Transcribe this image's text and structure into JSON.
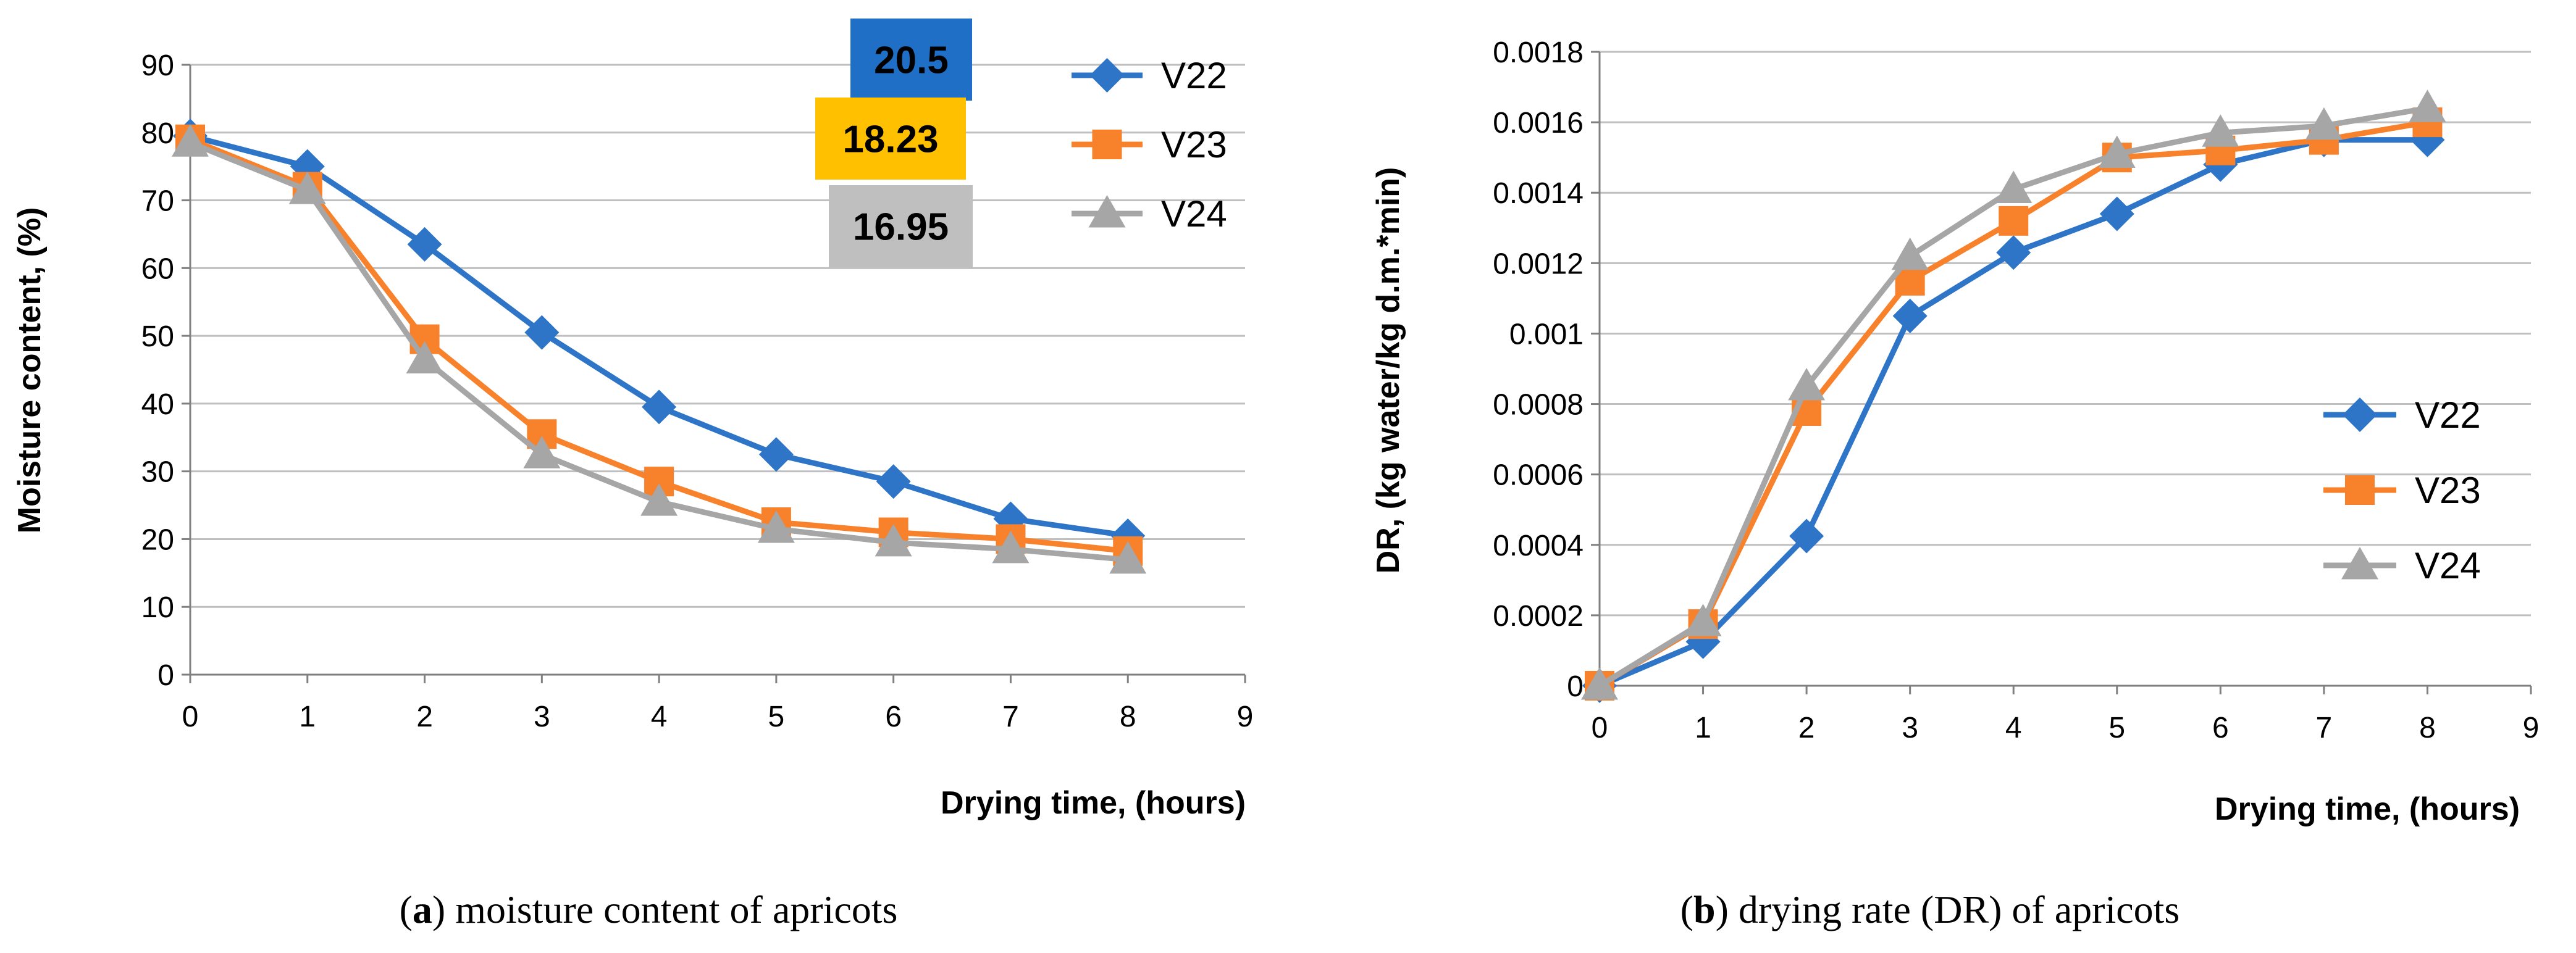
{
  "colors": {
    "V22": "#2E75C7",
    "V23": "#F8812B",
    "V24": "#A6A6A6",
    "box1": "#1F6FC6",
    "box2": "#FFC000",
    "box3": "#BFBFBF"
  },
  "captions": {
    "a_letter": "a",
    "a_text": " moisture content of apricots",
    "b_letter": "b",
    "b_text": " drying rate (DR) of apricots"
  },
  "final_values": [
    {
      "label": "20.5",
      "series": "V22"
    },
    {
      "label": "18.23",
      "series": "V23"
    },
    {
      "label": "16.95",
      "series": "V24"
    }
  ],
  "chart_data": [
    {
      "id": "a",
      "type": "line",
      "title": "",
      "xlabel": "Drying time, (hours)",
      "ylabel": "Moisture content, (%)",
      "xlim": [
        0,
        9
      ],
      "ylim": [
        0,
        90
      ],
      "xticks": [
        "0",
        "1",
        "2",
        "3",
        "4",
        "5",
        "6",
        "7",
        "8",
        "9"
      ],
      "yticks": [
        "0",
        "10",
        "20",
        "30",
        "40",
        "50",
        "60",
        "70",
        "80",
        "90"
      ],
      "grid": true,
      "legend_position": "top-right",
      "x": [
        0,
        1,
        2,
        3,
        4,
        5,
        6,
        7,
        8
      ],
      "series": [
        {
          "name": "V22",
          "marker": "diamond",
          "values": [
            79.5,
            75,
            63.5,
            50.5,
            39.5,
            32.5,
            28.5,
            23,
            20.5
          ]
        },
        {
          "name": "V23",
          "marker": "square",
          "values": [
            79,
            72,
            49.5,
            35.5,
            28.5,
            22.5,
            21,
            20,
            18.23
          ]
        },
        {
          "name": "V24",
          "marker": "triangle",
          "values": [
            78.5,
            71.5,
            46.5,
            32.5,
            25.5,
            21.5,
            19.5,
            18.5,
            16.95
          ]
        }
      ]
    },
    {
      "id": "b",
      "type": "line",
      "title": "",
      "xlabel": "Drying time, (hours)",
      "ylabel": "DR, (kg water/kg d.m.*min)",
      "xlim": [
        0,
        9
      ],
      "ylim": [
        0,
        0.0018
      ],
      "xticks": [
        "0",
        "1",
        "2",
        "3",
        "4",
        "5",
        "6",
        "7",
        "8",
        "9"
      ],
      "yticks": [
        "0",
        "0.0002",
        "0.0004",
        "0.0006",
        "0.0008",
        "0.001",
        "0.0012",
        "0.0014",
        "0.0016",
        "0.0018"
      ],
      "grid": true,
      "legend_position": "center-right",
      "x": [
        0,
        1,
        2,
        3,
        4,
        5,
        6,
        7,
        8
      ],
      "series": [
        {
          "name": "V22",
          "marker": "diamond",
          "values": [
            0,
            0.000125,
            0.000425,
            0.00105,
            0.00123,
            0.00134,
            0.00148,
            0.00155,
            0.00155
          ]
        },
        {
          "name": "V23",
          "marker": "square",
          "values": [
            0,
            0.000175,
            0.00078,
            0.00115,
            0.00132,
            0.0015,
            0.00152,
            0.00155,
            0.0016
          ]
        },
        {
          "name": "V24",
          "marker": "triangle",
          "values": [
            0,
            0.00018,
            0.00085,
            0.00122,
            0.00141,
            0.00151,
            0.00157,
            0.00159,
            0.00164
          ]
        }
      ]
    }
  ]
}
